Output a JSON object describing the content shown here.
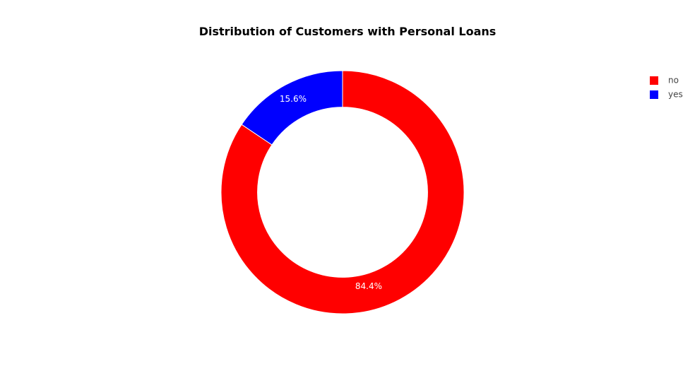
{
  "chart_data": {
    "type": "pie",
    "title": "Distribution of Customers with Personal Loans",
    "hole": 0.7,
    "slices": [
      {
        "label": "no",
        "value": 84.4,
        "text": "84.4%",
        "color": "#ff0000"
      },
      {
        "label": "yes",
        "value": 15.6,
        "text": "15.6%",
        "color": "#0000ff"
      }
    ],
    "legend": {
      "placement": "top-right",
      "items": [
        "no",
        "yes"
      ]
    },
    "start": "top",
    "direction": "clockwise"
  }
}
